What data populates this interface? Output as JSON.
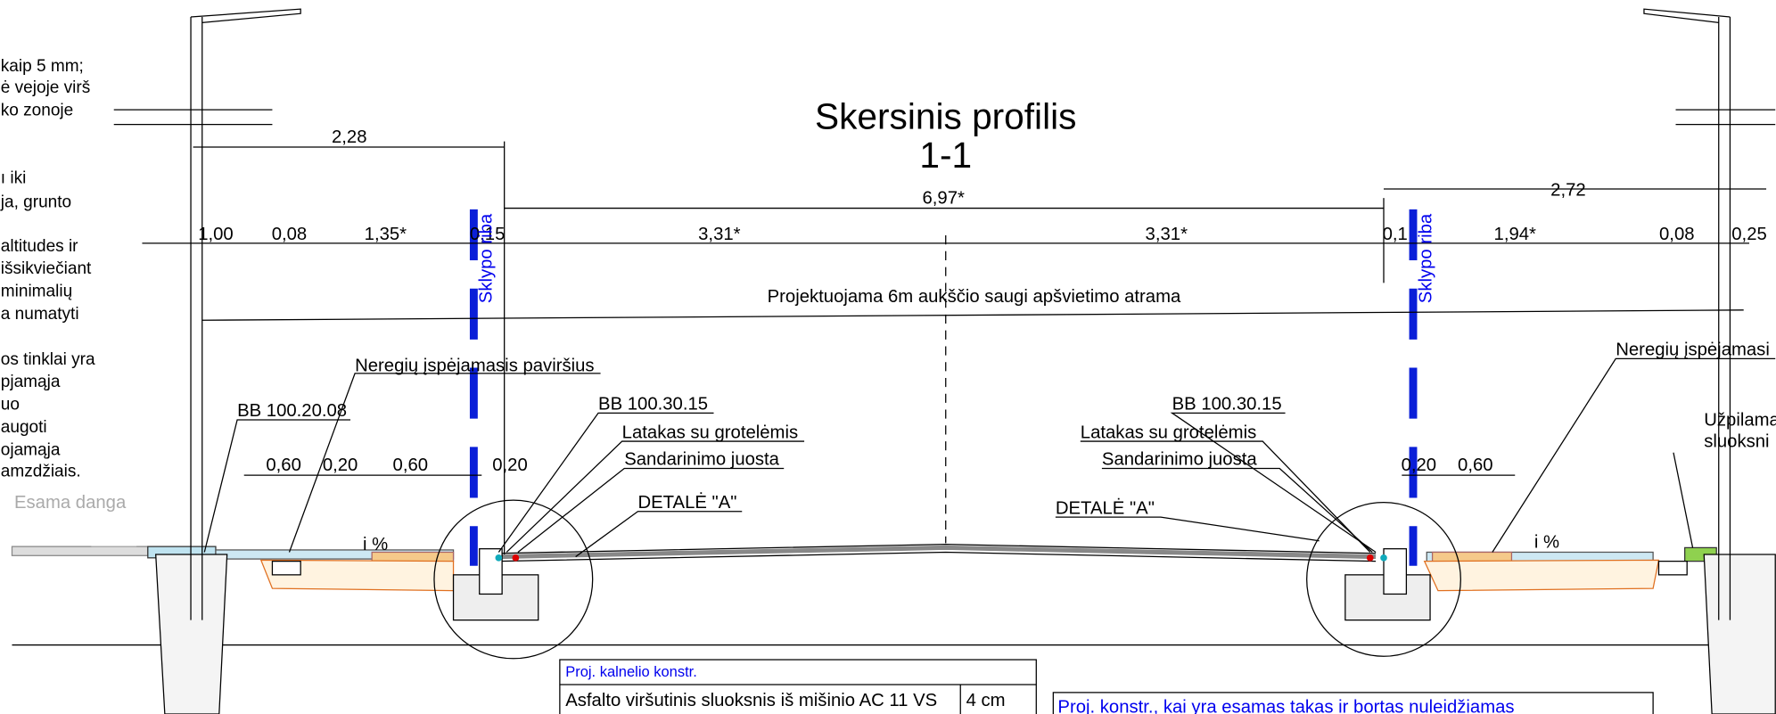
{
  "notes": [
    "kaip 5 mm;",
    "ė vejoje virš",
    "ko zonoje",
    "ı iki",
    "ja, grunto",
    "altitudes ir",
    "išsikviečiant",
    "minimalių",
    "a numatyti",
    "os tinklai yra",
    "pjamąja",
    "uo",
    "augoti",
    "ojamąja",
    "amzdžiais."
  ],
  "title": "Skersinis profilis",
  "subtitle": "1-1",
  "dimensions": [
    "2,28",
    "6,97*",
    "2,72",
    "1,00",
    "0,08",
    "1,35*",
    "0,15",
    "3,31*",
    "3,31*",
    "0,1",
    "1,94*",
    "0,08",
    "0,25",
    "0,60",
    "0,20",
    "0,60",
    "0,20",
    "0,20",
    "0,60"
  ],
  "boundary": [
    "Sklypo riba",
    "Sklypo riba"
  ],
  "pole_label": "Projektuojama 6m aukščio saugi apšvietimo atrama",
  "left_labels": [
    "Neregių įspėjamasis paviršius",
    "BB 100.20.08",
    "BB 100.30.15",
    "Latakas su grotelėmis",
    "Sandarinimo juosta",
    "DETALĖ \"A\""
  ],
  "right_labels": [
    "Neregių įspėjamasi",
    "BB 100.30.15",
    "Latakas su grotelėmis",
    "Sandarinimo juosta",
    "DETALĖ \"A\"",
    "Užpilama",
    "sluoksni"
  ],
  "existing": "Esama danga",
  "slope": [
    "i %",
    "i %"
  ],
  "table": {
    "header": "Proj. kalnelio konstr.",
    "rows": [
      [
        "Asfalto viršutinis sluoksnis iš mišinio AC 11 VS",
        "4 cm"
      ]
    ]
  },
  "table2": {
    "header": "Proj. konstr., kai yra esamas takas ir bortas nuleidžiamas"
  }
}
